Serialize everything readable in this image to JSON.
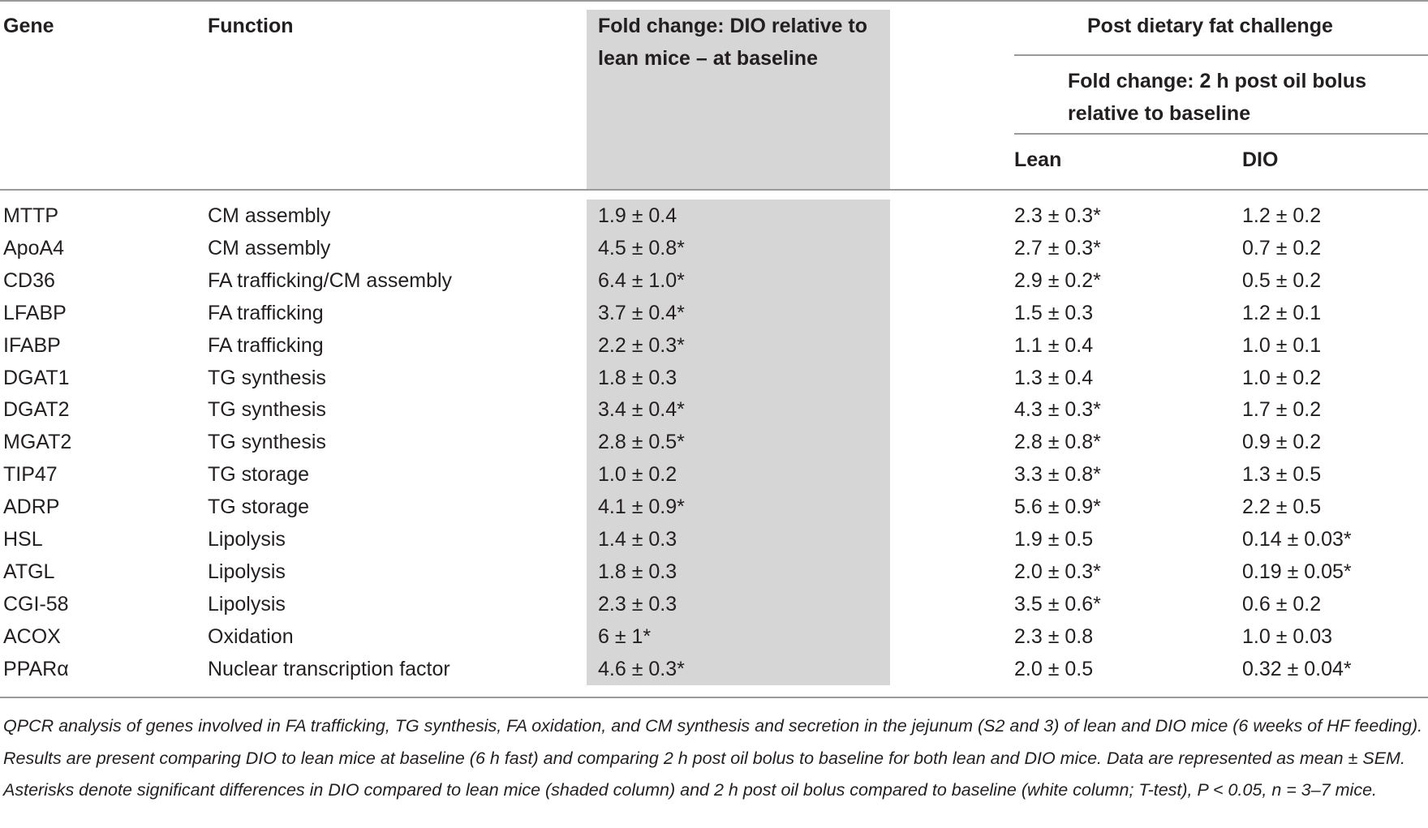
{
  "table": {
    "headers": {
      "gene": "Gene",
      "function": "Function",
      "fold_change_baseline": "Fold change: DIO relative to lean mice – at baseline",
      "post_challenge": "Post dietary fat challenge",
      "fold_change_post": "Fold change: 2 h post oil bolus relative to baseline",
      "lean": "Lean",
      "dio": "DIO"
    },
    "rows": [
      {
        "gene": "MTTP",
        "function": "CM assembly",
        "baseline": "1.9 ± 0.4",
        "lean": "2.3 ± 0.3*",
        "dio": "1.2 ± 0.2"
      },
      {
        "gene": "ApoA4",
        "function": "CM assembly",
        "baseline": "4.5 ± 0.8*",
        "lean": "2.7 ± 0.3*",
        "dio": "0.7 ± 0.2"
      },
      {
        "gene": "CD36",
        "function": "FA trafficking/CM assembly",
        "baseline": "6.4 ± 1.0*",
        "lean": "2.9 ± 0.2*",
        "dio": "0.5 ± 0.2"
      },
      {
        "gene": "LFABP",
        "function": "FA trafficking",
        "baseline": "3.7 ± 0.4*",
        "lean": "1.5 ± 0.3",
        "dio": "1.2 ± 0.1"
      },
      {
        "gene": "IFABP",
        "function": "FA trafficking",
        "baseline": "2.2 ± 0.3*",
        "lean": "1.1 ± 0.4",
        "dio": "1.0 ± 0.1"
      },
      {
        "gene": "DGAT1",
        "function": "TG synthesis",
        "baseline": "1.8 ± 0.3",
        "lean": "1.3 ± 0.4",
        "dio": "1.0 ± 0.2"
      },
      {
        "gene": "DGAT2",
        "function": "TG synthesis",
        "baseline": "3.4 ± 0.4*",
        "lean": "4.3 ± 0.3*",
        "dio": "1.7 ± 0.2"
      },
      {
        "gene": "MGAT2",
        "function": "TG synthesis",
        "baseline": "2.8 ± 0.5*",
        "lean": "2.8 ± 0.8*",
        "dio": "0.9 ± 0.2"
      },
      {
        "gene": "TIP47",
        "function": "TG storage",
        "baseline": "1.0 ± 0.2",
        "lean": "3.3 ± 0.8*",
        "dio": "1.3 ± 0.5"
      },
      {
        "gene": "ADRP",
        "function": "TG storage",
        "baseline": "4.1 ± 0.9*",
        "lean": "5.6 ± 0.9*",
        "dio": "2.2 ± 0.5"
      },
      {
        "gene": "HSL",
        "function": "Lipolysis",
        "baseline": "1.4 ± 0.3",
        "lean": "1.9 ± 0.5",
        "dio": "0.14 ± 0.03*"
      },
      {
        "gene": "ATGL",
        "function": "Lipolysis",
        "baseline": "1.8 ± 0.3",
        "lean": "2.0 ± 0.3*",
        "dio": "0.19 ± 0.05*"
      },
      {
        "gene": "CGI-58",
        "function": "Lipolysis",
        "baseline": "2.3 ± 0.3",
        "lean": "3.5 ± 0.6*",
        "dio": "0.6 ± 0.2"
      },
      {
        "gene": "ACOX",
        "function": "Oxidation",
        "baseline": "6 ± 1*",
        "lean": "2.3 ± 0.8",
        "dio": "1.0 ± 0.03"
      },
      {
        "gene": "PPARα",
        "function": "Nuclear transcription factor",
        "baseline": "4.6 ± 0.3*",
        "lean": "2.0 ± 0.5",
        "dio": "0.32 ± 0.04*"
      }
    ]
  },
  "caption": "QPCR analysis of genes involved in FA trafficking, TG synthesis, FA oxidation, and CM synthesis and secretion in the jejunum (S2 and 3) of lean and DIO mice (6 weeks of HF feeding). Results are present comparing DIO to lean mice at baseline (6 h fast) and comparing 2 h post oil bolus to baseline for both lean and DIO mice. Data are represented as mean ± SEM. Asterisks denote significant differences in DIO compared to lean mice (shaded column) and 2 h post oil bolus compared to baseline (white column; T-test), P < 0.05, n = 3–7 mice."
}
